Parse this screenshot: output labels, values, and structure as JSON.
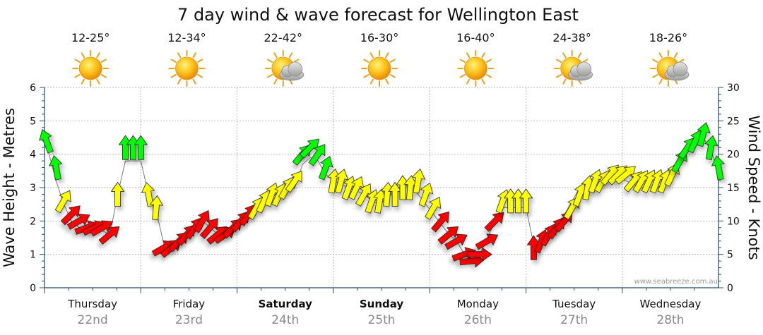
{
  "chart_data": {
    "type": "line",
    "title": "7 day wind & wave forecast for Wellington East",
    "ylabel_left": "Wave Height - Metres",
    "ylabel_right": "Wind Speed - Knots",
    "ylim_left": [
      0,
      6
    ],
    "ylim_right": [
      0,
      30
    ],
    "left_ticks": [
      "0",
      "1",
      "2",
      "3",
      "4",
      "5",
      "6"
    ],
    "right_ticks": [
      "0",
      "5",
      "10",
      "15",
      "20",
      "25",
      "30"
    ],
    "grid": true,
    "credit": "www.seabreeze.com.au",
    "days": [
      {
        "name": "Thursday",
        "date": "22nd",
        "temp": "12-25°",
        "weather": "sunny-icon",
        "bold": false
      },
      {
        "name": "Friday",
        "date": "23rd",
        "temp": "12-34°",
        "weather": "sunny-icon",
        "bold": false
      },
      {
        "name": "Saturday",
        "date": "24th",
        "temp": "22-42°",
        "weather": "partly-cloudy-icon",
        "bold": true
      },
      {
        "name": "Sunday",
        "date": "25th",
        "temp": "16-30°",
        "weather": "sunny-icon",
        "bold": true
      },
      {
        "name": "Monday",
        "date": "26th",
        "temp": "16-40°",
        "weather": "sunny-icon",
        "bold": false
      },
      {
        "name": "Tuesday",
        "date": "27th",
        "temp": "24-38°",
        "weather": "partly-cloudy-icon",
        "bold": false
      },
      {
        "name": "Wednesday",
        "date": "28th",
        "temp": "18-26°",
        "weather": "partly-cloudy-icon",
        "bold": false
      }
    ],
    "wind_colors": {
      "light": "#ff0000",
      "moderate": "#ffff00",
      "strong": "#00ff00"
    },
    "series": [
      {
        "name": "Wind",
        "x_days": [
          0.02,
          0.12,
          0.2,
          0.28,
          0.36,
          0.44,
          0.52,
          0.6,
          0.68,
          0.76,
          0.84,
          0.92,
          1.0,
          1.08,
          1.16,
          1.24,
          1.32,
          1.4,
          1.48,
          1.56,
          1.64,
          1.72,
          1.8,
          1.88,
          1.96,
          2.04,
          2.12,
          2.2,
          2.28,
          2.36,
          2.44,
          2.52,
          2.6,
          2.68,
          2.76,
          2.84,
          2.92,
          3.0,
          3.08,
          3.16,
          3.24,
          3.32,
          3.4,
          3.48,
          3.56,
          3.64,
          3.72,
          3.8,
          3.88,
          3.96,
          4.04,
          4.12,
          4.2,
          4.28,
          4.36,
          4.44,
          4.52,
          4.6,
          4.68,
          4.76,
          4.84,
          4.92,
          5.0,
          5.08,
          5.16,
          5.24,
          5.32,
          5.4,
          5.48,
          5.56,
          5.64,
          5.72,
          5.8,
          5.88,
          5.96,
          6.04,
          6.12,
          6.2,
          6.28,
          6.36,
          6.44,
          6.52,
          6.6,
          6.68,
          6.76,
          6.84,
          6.92,
          7.0
        ],
        "knots": [
          22,
          18,
          13,
          11,
          10,
          9,
          9,
          9,
          8,
          14,
          21,
          21,
          21,
          14,
          12,
          6,
          6,
          7,
          8,
          9,
          10,
          9,
          8,
          8,
          9,
          10,
          11,
          12,
          13,
          14,
          14,
          15,
          16,
          20,
          21,
          20,
          18,
          16,
          16,
          15,
          15,
          14,
          13,
          13,
          14,
          14,
          15,
          15,
          16,
          14,
          12,
          10,
          8,
          7,
          5,
          4,
          5,
          7,
          10,
          13,
          13,
          13,
          13,
          6,
          7,
          8,
          9,
          10,
          12,
          14,
          15,
          16,
          16,
          17,
          17,
          17,
          16,
          16,
          16,
          16,
          16,
          17,
          19,
          21,
          22,
          23,
          21,
          18
        ],
        "wave_m": [
          4.3,
          3.2,
          2.5,
          2.0,
          1.8,
          1.7,
          1.7,
          1.7,
          1.6,
          2.8,
          3.8,
          3.8,
          3.8,
          2.8,
          2.3,
          1.3,
          1.2,
          1.4,
          1.6,
          1.8,
          2.0,
          1.8,
          1.6,
          1.6,
          1.7,
          1.9,
          2.2,
          2.5,
          2.7,
          2.8,
          2.8,
          2.9,
          3.0,
          3.7,
          3.9,
          3.8,
          3.4,
          3.2,
          3.1,
          3.0,
          2.9,
          2.8,
          2.6,
          2.5,
          2.7,
          2.9,
          3.1,
          3.0,
          2.8,
          2.5,
          2.2,
          1.9,
          1.6,
          1.4,
          1.0,
          0.8,
          1.0,
          1.5,
          2.0,
          2.4,
          2.4,
          2.4,
          2.4,
          1.3,
          1.4,
          1.6,
          1.9,
          2.2,
          2.6,
          3.0,
          3.2,
          3.3,
          3.3,
          3.4,
          3.3,
          3.2,
          3.1,
          3.0,
          3.0,
          3.0,
          3.1,
          3.3,
          3.7,
          4.1,
          4.3,
          4.5,
          4.1,
          3.5
        ],
        "dir_deg": [
          160,
          170,
          210,
          225,
          240,
          250,
          245,
          240,
          230,
          180,
          180,
          180,
          180,
          170,
          185,
          240,
          230,
          225,
          220,
          215,
          210,
          220,
          230,
          235,
          225,
          220,
          215,
          210,
          205,
          200,
          205,
          210,
          215,
          220,
          225,
          215,
          200,
          190,
          195,
          200,
          205,
          210,
          200,
          190,
          185,
          180,
          180,
          185,
          190,
          200,
          210,
          220,
          230,
          240,
          250,
          265,
          270,
          240,
          225,
          200,
          180,
          180,
          180,
          180,
          200,
          210,
          215,
          220,
          210,
          200,
          190,
          200,
          210,
          220,
          225,
          230,
          220,
          210,
          205,
          200,
          200,
          205,
          210,
          215,
          205,
          195,
          190,
          170
        ]
      }
    ]
  }
}
